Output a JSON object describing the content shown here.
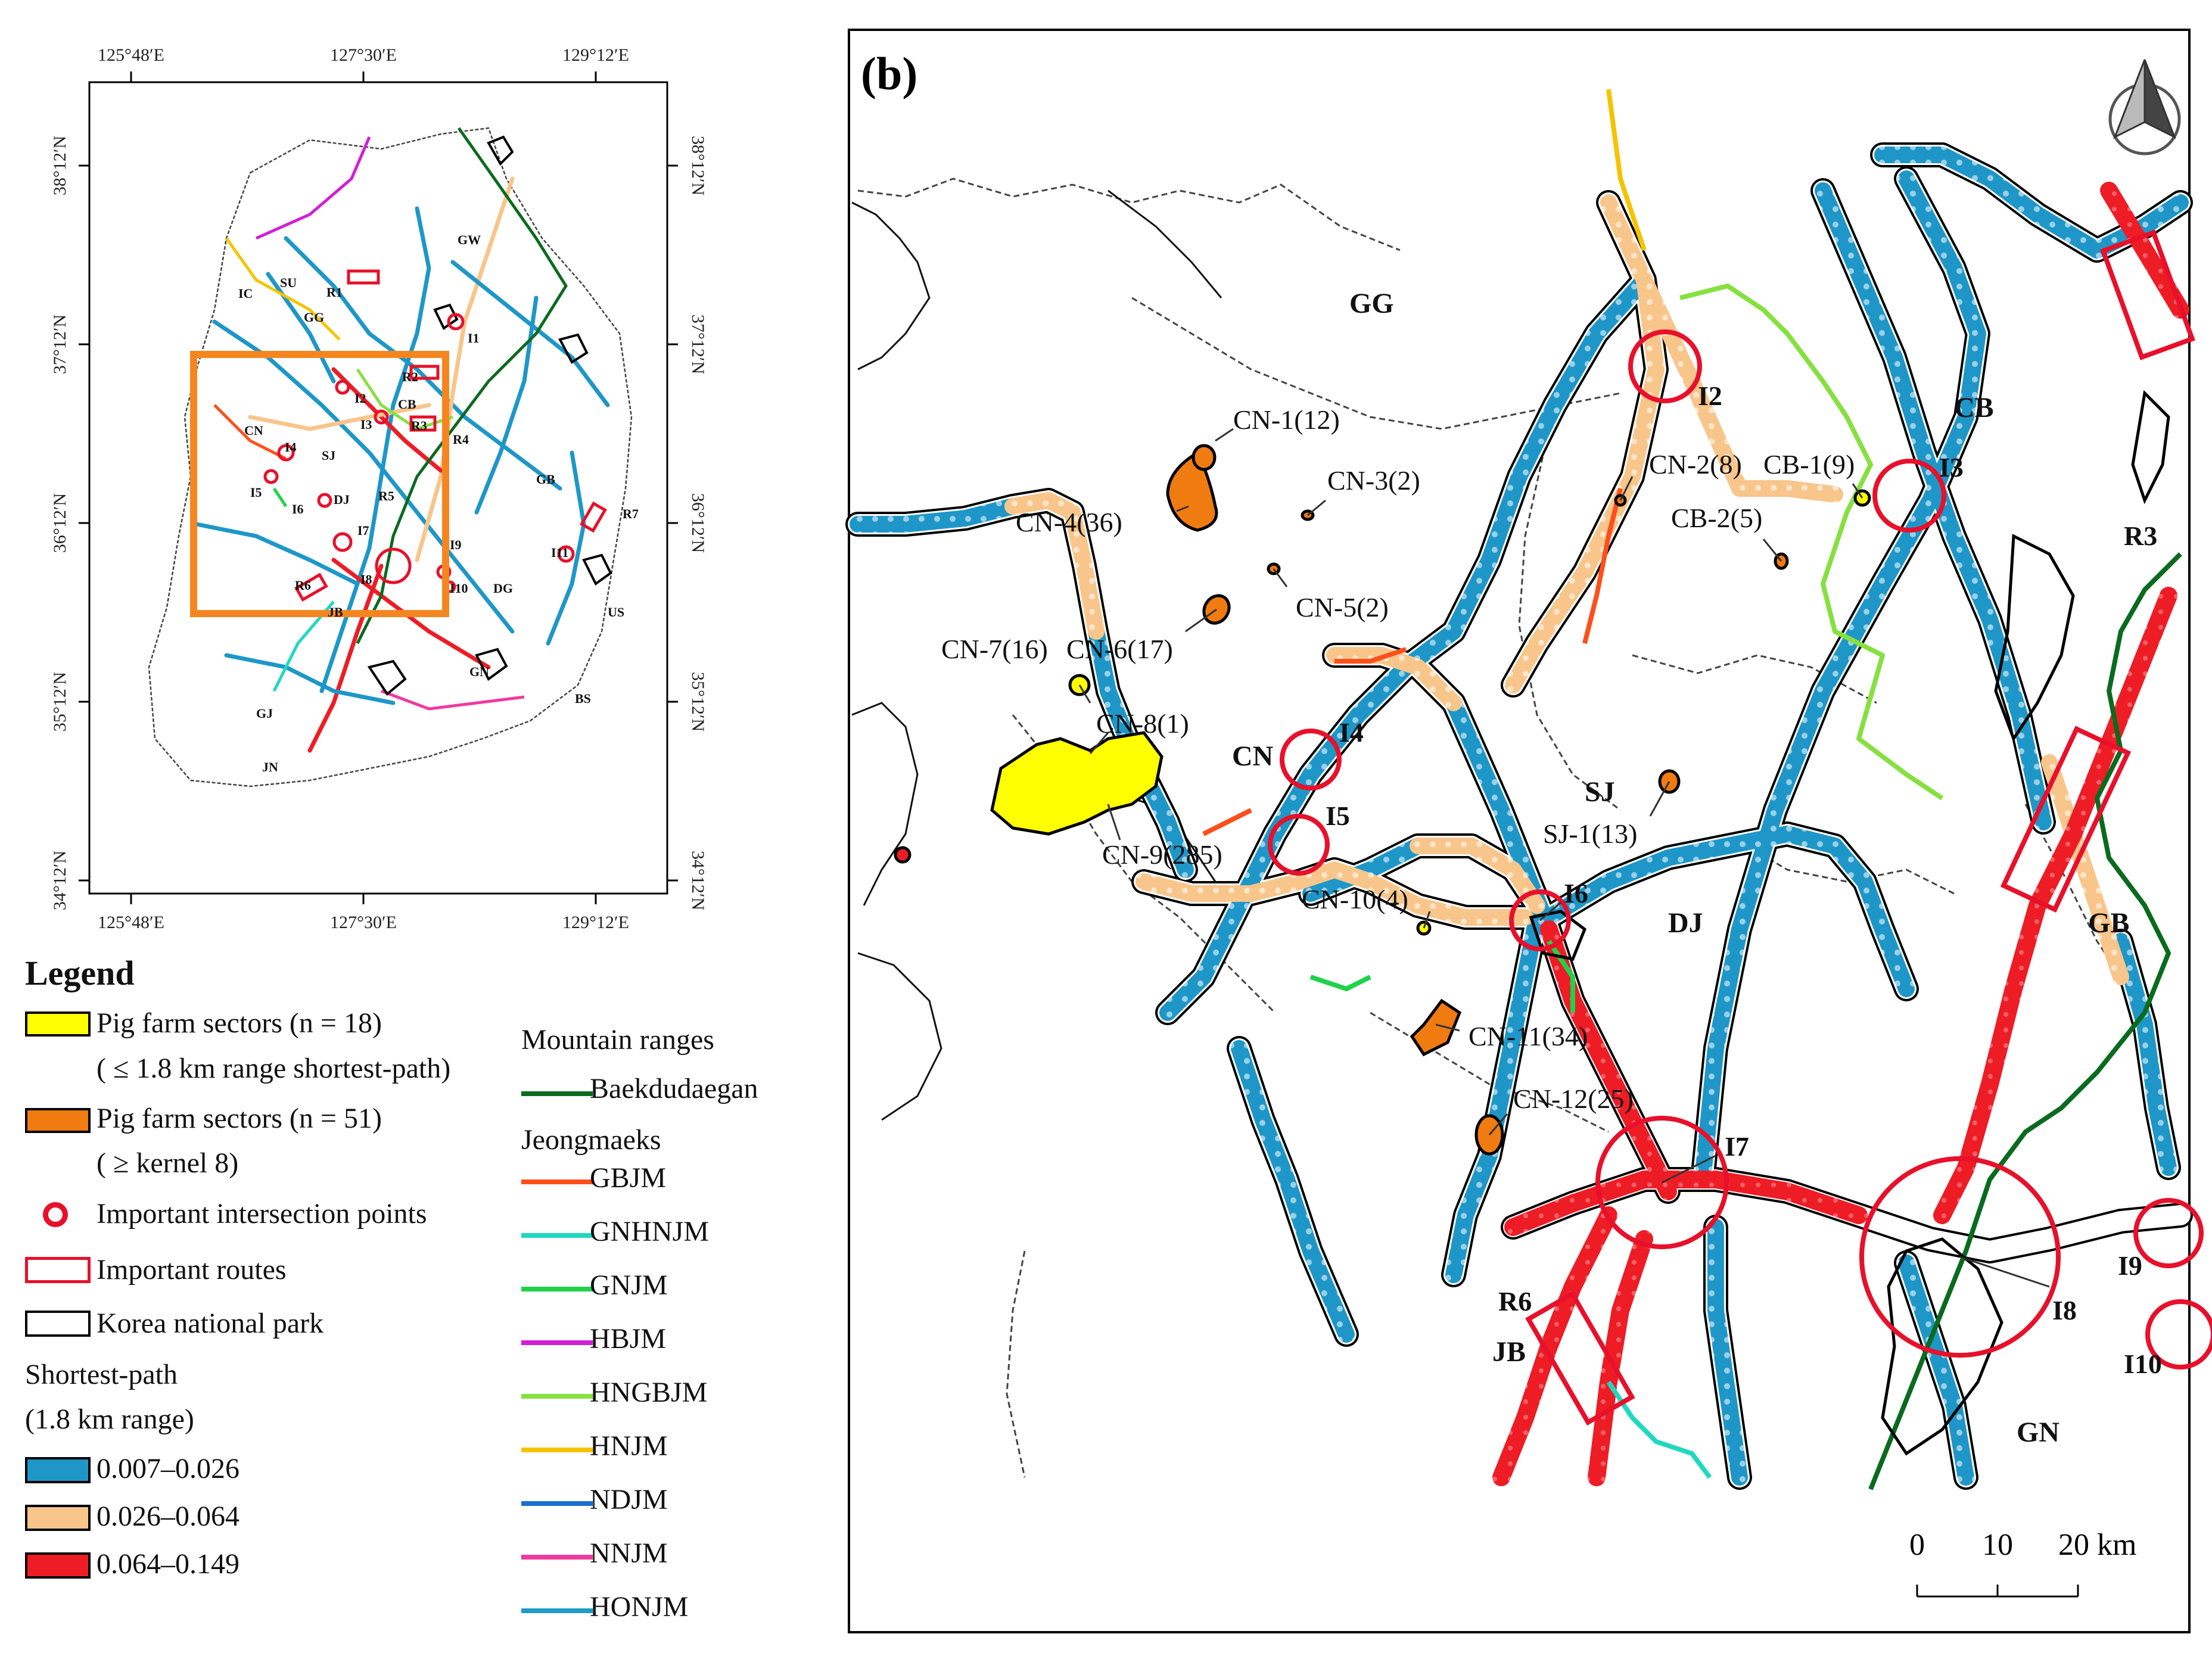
{
  "overview_map": {
    "top_ticks": [
      "125°48′E",
      "127°30′E",
      "129°12′E"
    ],
    "bottom_ticks": [
      "125°48′E",
      "127°30′E",
      "129°12′E"
    ],
    "left_ticks": [
      "38°12′N",
      "37°12′N",
      "36°12′N",
      "35°12′N",
      "34°12′N"
    ],
    "right_ticks": [
      "38°12′N",
      "37°12′N",
      "36°12′N",
      "35°12′N",
      "34°12′N"
    ],
    "region_labels": [
      "GW",
      "SU",
      "IC",
      "GG",
      "R1",
      "I1",
      "R2",
      "I2",
      "CB",
      "I3",
      "R3",
      "CN",
      "I4",
      "SJ",
      "R4",
      "I5",
      "I6",
      "DJ",
      "R5",
      "GB",
      "R7",
      "I7",
      "I9",
      "I11",
      "R6",
      "I8",
      "I10",
      "DG",
      "US",
      "JB",
      "GN",
      "BS",
      "GJ",
      "JN"
    ]
  },
  "legend": {
    "title": "Legend",
    "items": [
      {
        "label": "Pig farm sectors (n = 18)",
        "sub": "( ≤ 1.8 km range shortest-path)",
        "color": "#ffff00"
      },
      {
        "label": "Pig farm sectors (n = 51)",
        "sub": "( ≥ kernel 8)",
        "color": "#f07b10"
      },
      {
        "label": "Important intersection points",
        "color": "#e8102a"
      },
      {
        "label": "Important routes",
        "color": "#e8102a"
      },
      {
        "label": "Korea national park",
        "color": "#000000"
      }
    ],
    "shortest_title": "Shortest-path",
    "shortest_sub": "(1.8 km range)",
    "classes": [
      {
        "label": "0.007–0.026",
        "color": "#1e97c8"
      },
      {
        "label": "0.026–0.064",
        "color": "#f8c58a"
      },
      {
        "label": "0.064–0.149",
        "color": "#ee1c25"
      }
    ],
    "mountain_title": "Mountain ranges",
    "baekdu": {
      "label": "Baekdudaegan",
      "color": "#0a6b1e"
    },
    "jeong_title": "Jeongmaeks",
    "jeongmaeks": [
      {
        "label": "GBJM",
        "color": "#ff4f1a"
      },
      {
        "label": "GNHNJM",
        "color": "#20d8c0"
      },
      {
        "label": "GNJM",
        "color": "#1fd24a"
      },
      {
        "label": "HBJM",
        "color": "#d21fd6"
      },
      {
        "label": "HNGBJM",
        "color": "#86e040"
      },
      {
        "label": "HNJM",
        "color": "#f4c400"
      },
      {
        "label": "NDJM",
        "color": "#1a6fd0"
      },
      {
        "label": "NNJM",
        "color": "#f03aa0"
      },
      {
        "label": "HONJM",
        "color": "#1e9cc8"
      }
    ]
  },
  "panel_b": {
    "tag": "(b)",
    "regions": [
      "GG",
      "CB",
      "CN",
      "SJ",
      "DJ",
      "GB",
      "JB",
      "GN"
    ],
    "farms": [
      "CN-1(12)",
      "CN-2(8)",
      "CB-1(9)",
      "CN-3(2)",
      "CN-4(36)",
      "CB-2(5)",
      "CN-5(2)",
      "CN-7(16)",
      "CN-6(17)",
      "CN-8(1)",
      "SJ-1(13)",
      "CN-9(285)",
      "CN-10(4)",
      "CN-11(34)",
      "CN-12(25)"
    ],
    "intersections": [
      "I2",
      "I3",
      "I4",
      "I5",
      "I6",
      "I7",
      "I8",
      "I9",
      "I10"
    ],
    "routes": [
      "R3",
      "R6"
    ],
    "scale": {
      "ticks": [
        "0",
        "10",
        "20 km"
      ]
    }
  }
}
